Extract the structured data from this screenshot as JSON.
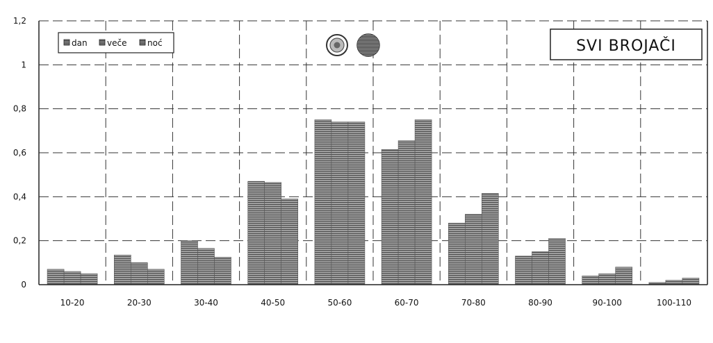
{
  "chart_data": {
    "type": "bar",
    "title": "SVI BROJAČI",
    "xlabel": "",
    "ylabel": "",
    "categories": [
      "10-20",
      "20-30",
      "30-40",
      "40-50",
      "50-60",
      "60-70",
      "70-80",
      "80-90",
      "90-100",
      "100-110"
    ],
    "series": [
      {
        "name": "dan",
        "values": [
          0.07,
          0.135,
          0.2,
          0.47,
          0.75,
          0.615,
          0.28,
          0.13,
          0.04,
          0.01
        ]
      },
      {
        "name": "veče",
        "values": [
          0.06,
          0.1,
          0.165,
          0.465,
          0.74,
          0.655,
          0.32,
          0.15,
          0.05,
          0.02
        ]
      },
      {
        "name": "noć",
        "values": [
          0.05,
          0.07,
          0.125,
          0.39,
          0.74,
          0.75,
          0.415,
          0.21,
          0.08,
          0.03
        ]
      }
    ],
    "ylim": [
      0,
      1.2
    ],
    "yticks": [
      "0",
      "0,2",
      "0,4",
      "0,6",
      "0,8",
      "1",
      "1,2"
    ],
    "grid": "dashed",
    "legend_position": "top-left"
  },
  "colors": {
    "bar_fill": "#9a9a9a",
    "bar_stripe": "#5a5a5a",
    "axis": "#222222"
  },
  "icons": [
    "circular-seal-icon",
    "striped-globe-icon"
  ]
}
